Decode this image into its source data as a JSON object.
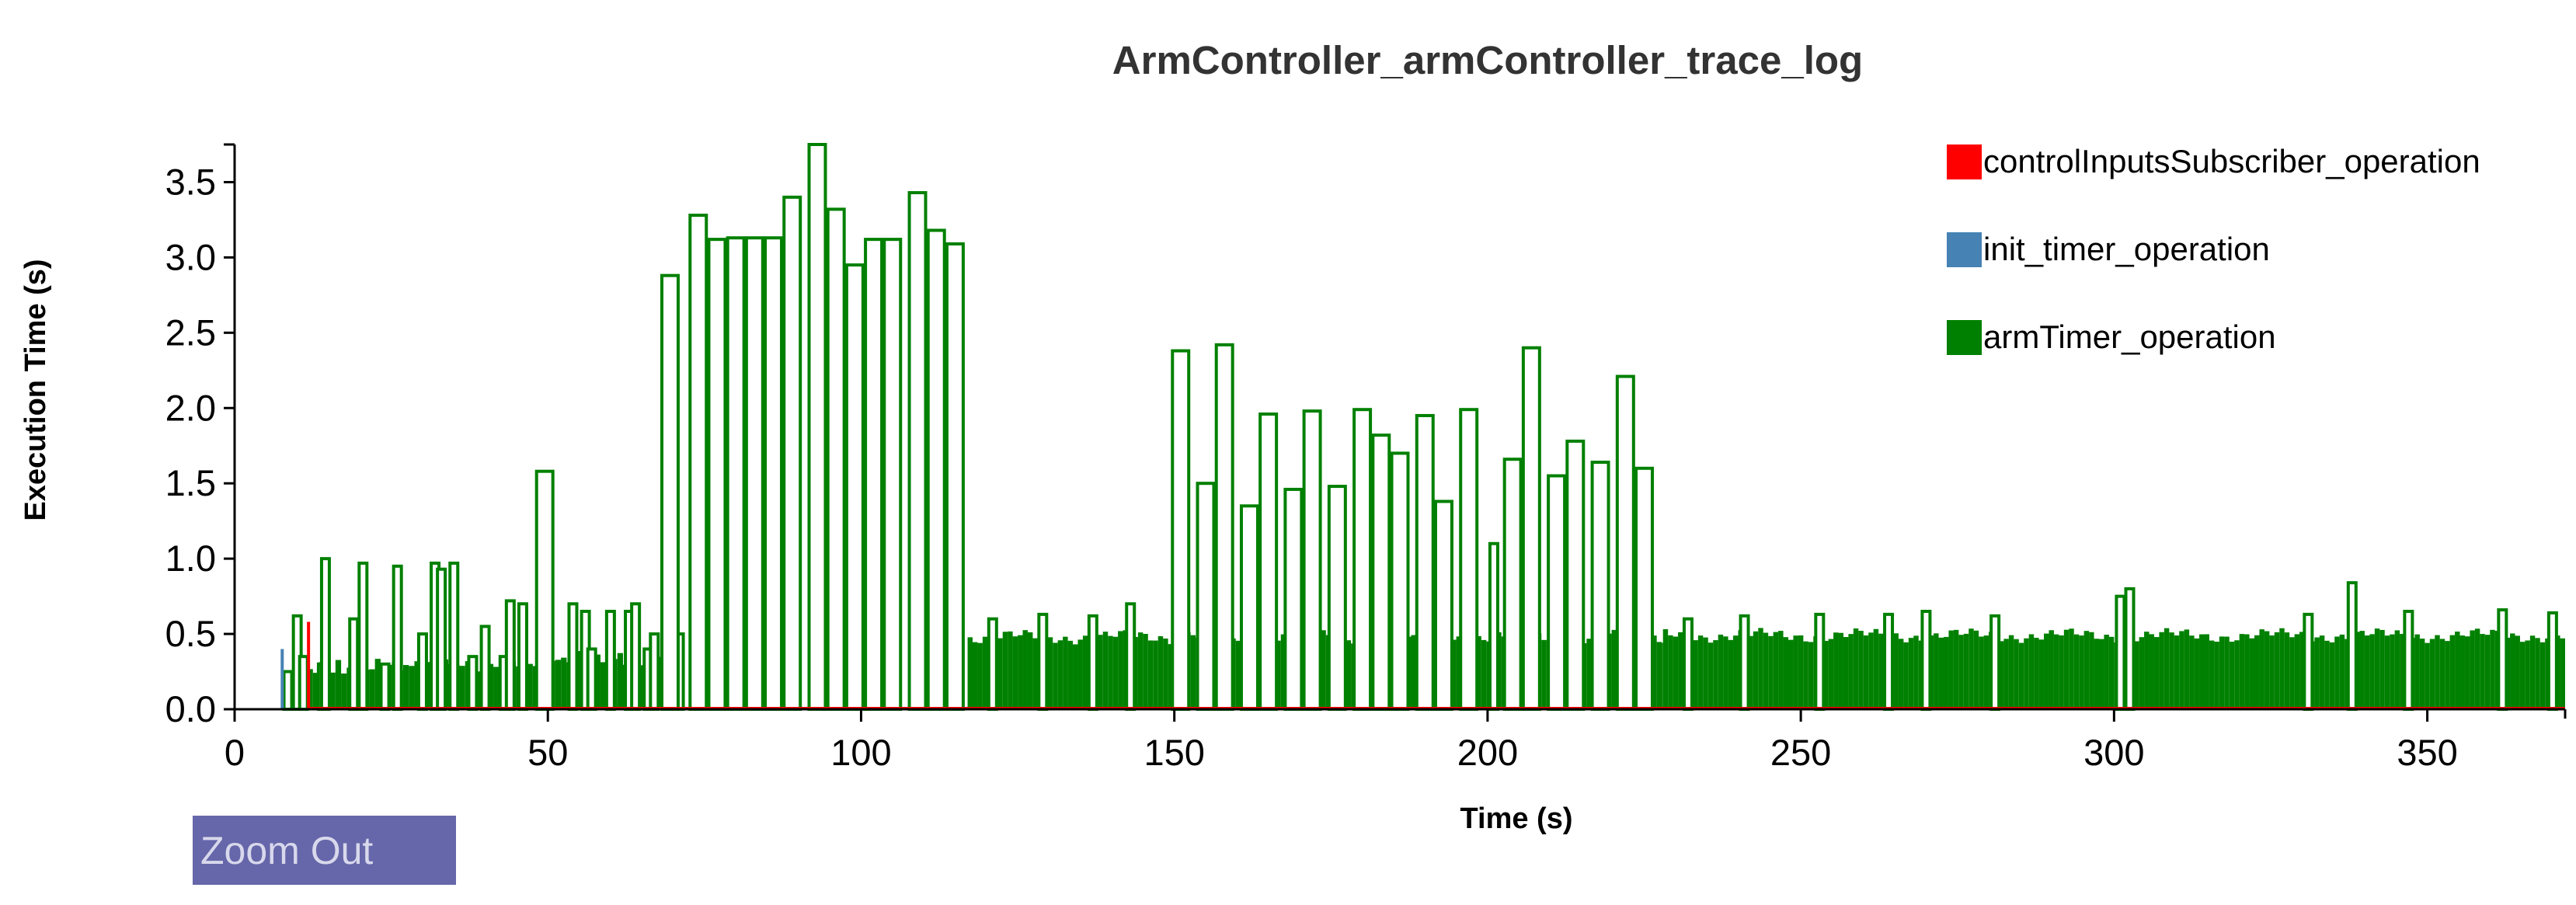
{
  "chart_data": {
    "type": "bar",
    "title": "ArmController_armController_trace_log",
    "xlabel": "Time (s)",
    "ylabel": "Execution Time (s)",
    "xlim": [
      0,
      372
    ],
    "ylim": [
      0,
      3.75
    ],
    "xticks": [
      "0",
      "50",
      "100",
      "150",
      "200",
      "250",
      "300",
      "350"
    ],
    "yticks": [
      "0.0",
      "0.5",
      "1.0",
      "1.5",
      "2.0",
      "2.5",
      "3.0",
      "3.5"
    ],
    "legend_position": "top-right",
    "series": [
      {
        "name": "controlInputsSubscriber_operation",
        "color": "#ff0000",
        "points": [
          [
            11.8,
            0.58
          ]
        ]
      },
      {
        "name": "init_timer_operation",
        "color": "#4682b4",
        "points": [
          [
            7.6,
            0.4
          ]
        ]
      },
      {
        "name": "armTimer_operation",
        "color": "#008000",
        "dense_regions": [
          {
            "x_start": 8,
            "x_end": 68,
            "dt": 0.9,
            "base": 0.26,
            "slope": 0.0015,
            "var": 0.06
          },
          {
            "x_start": 117,
            "x_end": 151,
            "dt": 0.8,
            "base": 0.48,
            "slope": 0,
            "var": 0.05
          },
          {
            "x_start": 151,
            "x_end": 228,
            "dt": 0.8,
            "base": 0.48,
            "slope": 0,
            "var": 0.05
          },
          {
            "x_start": 228,
            "x_end": 372,
            "dt": 0.8,
            "base": 0.49,
            "slope": 0,
            "var": 0.05
          }
        ],
        "spikes": [
          [
            8.5,
            0.25
          ],
          [
            10,
            0.62
          ],
          [
            11,
            0.35
          ],
          [
            14,
            0.3
          ],
          [
            14.5,
            1.0
          ],
          [
            19,
            0.6
          ],
          [
            20.5,
            0.97
          ],
          [
            24,
            0.3
          ],
          [
            26,
            0.95
          ],
          [
            30,
            0.5
          ],
          [
            32,
            0.97
          ],
          [
            33,
            0.93
          ],
          [
            35,
            0.97
          ],
          [
            38,
            0.35
          ],
          [
            40,
            0.55
          ],
          [
            43,
            0.35
          ],
          [
            44,
            0.72
          ],
          [
            46,
            0.7
          ],
          [
            49.5,
            1.58
          ],
          [
            54,
            0.7
          ],
          [
            56,
            0.65
          ],
          [
            57,
            0.4
          ],
          [
            60,
            0.65
          ],
          [
            63,
            0.65
          ],
          [
            64,
            0.7
          ],
          [
            66,
            0.4
          ],
          [
            67,
            0.5
          ],
          [
            71,
            0.5
          ],
          [
            69.5,
            2.88
          ],
          [
            74,
            3.28
          ],
          [
            77,
            3.12
          ],
          [
            80,
            3.13
          ],
          [
            83,
            3.13
          ],
          [
            86,
            3.13
          ],
          [
            89,
            3.4
          ],
          [
            93,
            3.75
          ],
          [
            96,
            3.32
          ],
          [
            99,
            2.95
          ],
          [
            102,
            3.12
          ],
          [
            105,
            3.12
          ],
          [
            109,
            3.43
          ],
          [
            112,
            3.18
          ],
          [
            115,
            3.09
          ],
          [
            121,
            0.6
          ],
          [
            129,
            0.63
          ],
          [
            137,
            0.62
          ],
          [
            143,
            0.7
          ],
          [
            151,
            2.38
          ],
          [
            155,
            1.5
          ],
          [
            158,
            2.42
          ],
          [
            162,
            1.35
          ],
          [
            165,
            1.96
          ],
          [
            169,
            1.46
          ],
          [
            172,
            1.98
          ],
          [
            176,
            1.48
          ],
          [
            180,
            1.99
          ],
          [
            183,
            1.82
          ],
          [
            186,
            1.7
          ],
          [
            190,
            1.95
          ],
          [
            193,
            1.38
          ],
          [
            197,
            1.99
          ],
          [
            201,
            1.1
          ],
          [
            204,
            1.66
          ],
          [
            207,
            2.4
          ],
          [
            211,
            1.55
          ],
          [
            214,
            1.78
          ],
          [
            218,
            1.64
          ],
          [
            222,
            2.21
          ],
          [
            225,
            1.6
          ],
          [
            232,
            0.6
          ],
          [
            241,
            0.62
          ],
          [
            253,
            0.63
          ],
          [
            264,
            0.63
          ],
          [
            270,
            0.65
          ],
          [
            281,
            0.62
          ],
          [
            301,
            0.75
          ],
          [
            302.5,
            0.8
          ],
          [
            331,
            0.63
          ],
          [
            338,
            0.84
          ],
          [
            347,
            0.65
          ],
          [
            362,
            0.66
          ],
          [
            370,
            0.64
          ]
        ]
      }
    ]
  },
  "controls": {
    "zoom_out_label": "Zoom Out"
  }
}
